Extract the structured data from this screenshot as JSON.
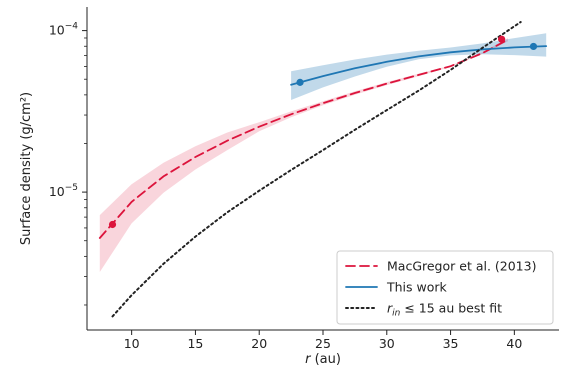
{
  "chart_data": {
    "type": "line",
    "title": "",
    "xlabel": "r (au)",
    "ylabel": "Surface density (g/cm²)",
    "xscale": "linear",
    "yscale": "log",
    "xlim": [
      6.5,
      43.5
    ],
    "ylim": [
      1.4e-06,
      0.00014
    ],
    "x_ticks": [
      10,
      15,
      20,
      25,
      30,
      35,
      40
    ],
    "y_ticks": [
      {
        "value": 1e-05,
        "label_base": "10",
        "label_exp": "−5"
      },
      {
        "value": 0.0001,
        "label_base": "10",
        "label_exp": "−4"
      }
    ],
    "grid": false,
    "legend_position": "lower-right",
    "legend": [
      {
        "label": "MacGregor et al. (2013)",
        "style": "dashed",
        "color": "#dc143c"
      },
      {
        "label": "This work",
        "style": "solid",
        "color": "#1f77b4"
      },
      {
        "label_italic": "r",
        "label_sub": "in",
        "label_rest": " ≤ 15 au best fit",
        "style": "dotted",
        "color": "#222222"
      }
    ],
    "series": [
      {
        "name": "MacGregor et al. (2013)",
        "color": "#dc143c",
        "style": "dashed",
        "x": [
          7.5,
          10,
          12.5,
          15,
          17.5,
          20,
          22.5,
          25,
          27.5,
          30,
          32.5,
          35,
          37.5,
          39.5
        ],
        "y": [
          5.2e-06,
          8.7e-06,
          1.25e-05,
          1.65e-05,
          2.08e-05,
          2.54e-05,
          3.03e-05,
          3.55e-05,
          4.11e-05,
          4.7e-05,
          5.32e-05,
          6.02e-05,
          7.26e-05,
          8.78e-05
        ],
        "y_low": [
          3.2e-06,
          6.4e-06,
          9.9e-06,
          1.38e-05,
          1.82e-05,
          2.38e-05,
          2.91e-05,
          3.45e-05,
          4.01e-05,
          4.6e-05,
          5.22e-05,
          5.96e-05,
          7.16e-05,
          8.58e-05
        ],
        "y_high": [
          7.2e-06,
          1.12e-05,
          1.52e-05,
          1.92e-05,
          2.34e-05,
          2.71e-05,
          3.16e-05,
          3.65e-05,
          4.21e-05,
          4.8e-05,
          5.42e-05,
          6.08e-05,
          7.36e-05,
          8.98e-05
        ],
        "markers": [
          {
            "x": 8.5,
            "y": 6.3e-06
          },
          {
            "x": 39,
            "y": 8.85e-05
          }
        ]
      },
      {
        "name": "This work",
        "color": "#1f77b4",
        "style": "solid",
        "x": [
          22.5,
          25,
          27.5,
          30,
          32.5,
          35,
          37.5,
          40,
          42.5
        ],
        "y": [
          4.62e-05,
          5.23e-05,
          5.84e-05,
          6.41e-05,
          6.92e-05,
          7.34e-05,
          7.65e-05,
          7.87e-05,
          8.02e-05
        ],
        "y_low": [
          3.72e-05,
          4.45e-05,
          5.2e-05,
          5.98e-05,
          6.64e-05,
          7.02e-05,
          7.13e-05,
          7.05e-05,
          6.9e-05
        ],
        "y_high": [
          5.6e-05,
          6.11e-05,
          6.62e-05,
          7.1e-05,
          7.51e-05,
          7.86e-05,
          8.33e-05,
          8.98e-05,
          9.62e-05
        ],
        "markers": [
          {
            "x": 23.2,
            "y": 4.78e-05
          },
          {
            "x": 41.5,
            "y": 7.98e-05
          }
        ]
      },
      {
        "name": "r_in ≤ 15 au best fit",
        "color": "#222222",
        "style": "dotted",
        "x": [
          8.5,
          10,
          12.5,
          15,
          17.5,
          20,
          22.5,
          25,
          27.5,
          30,
          32.5,
          35,
          37.5,
          40.5
        ],
        "y": [
          1.7e-06,
          2.3e-06,
          3.6e-06,
          5.3e-06,
          7.5e-06,
          1.02e-05,
          1.37e-05,
          1.82e-05,
          2.43e-05,
          3.22e-05,
          4.25e-05,
          5.71e-05,
          7.82e-05,
          0.000113
        ]
      }
    ]
  }
}
